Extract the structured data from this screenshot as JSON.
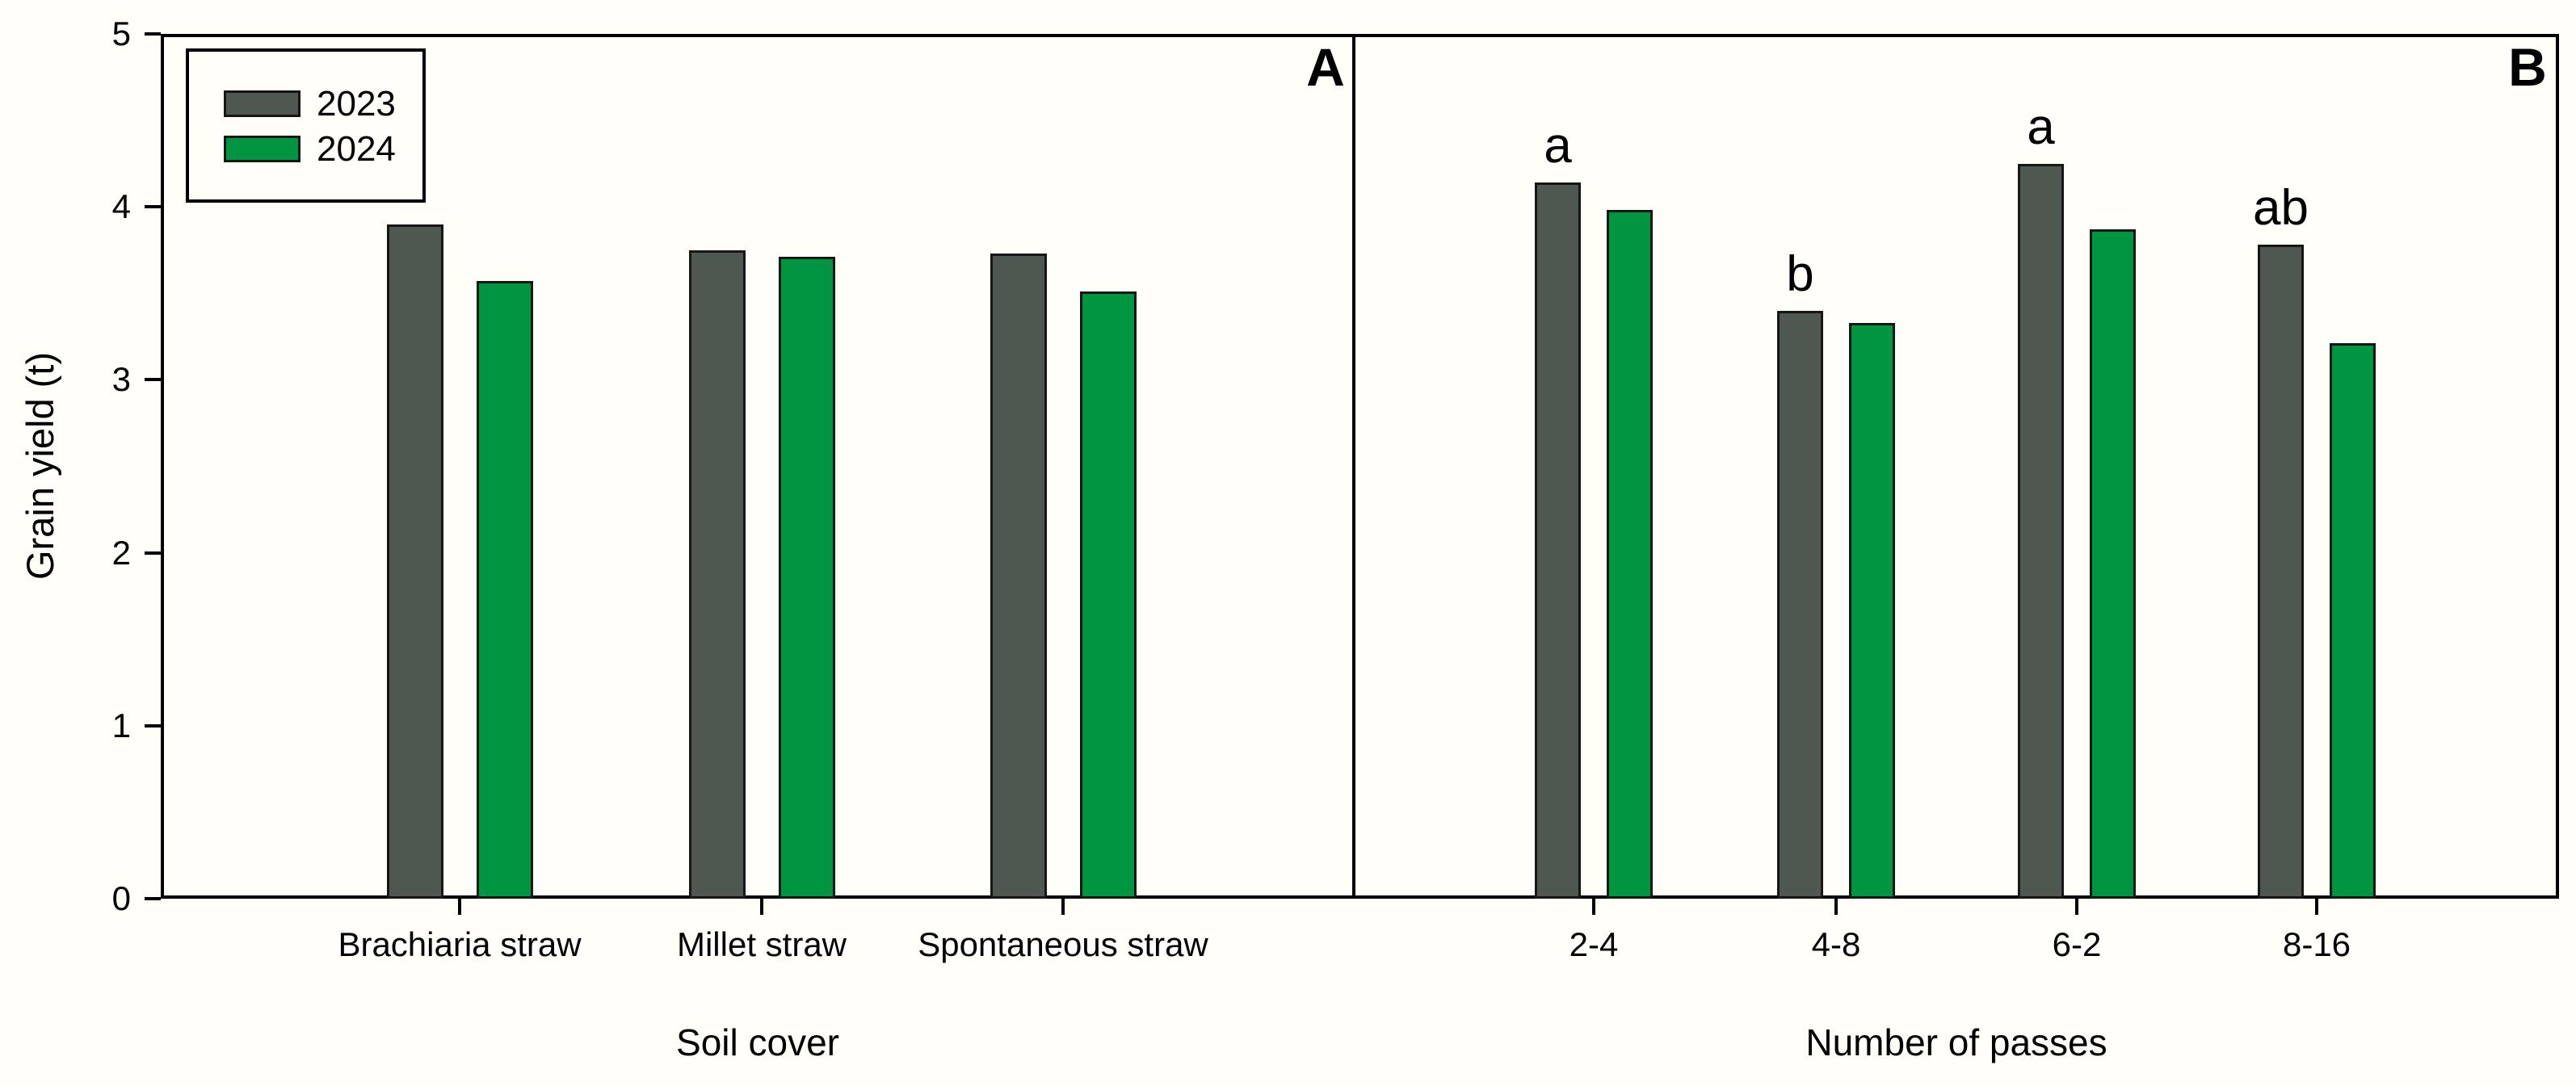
{
  "figure": {
    "background": "#fffef8",
    "ylabel": "Grain yield (t)",
    "ylim": [
      0,
      5
    ],
    "ytick_labels": [
      "0",
      "1",
      "2",
      "3",
      "4",
      "5"
    ],
    "axis_color": "#000000",
    "bar_border_color": "#161616"
  },
  "legend": {
    "position": "top-left",
    "items": [
      {
        "label": "2023",
        "color": "#4f5850"
      },
      {
        "label": "2024",
        "color": "#009540"
      }
    ]
  },
  "chart_data": [
    {
      "type": "bar",
      "panel_label": "A",
      "xlabel": "Soil cover",
      "ylabel": "Grain yield (t)",
      "ylim": [
        0,
        5
      ],
      "grid": false,
      "legend_position": "top-left",
      "categories": [
        "Brachiaria straw",
        "Millet straw",
        "Spontaneous straw"
      ],
      "series": [
        {
          "name": "2023",
          "color": "#4f5850",
          "values": [
            3.9,
            3.75,
            3.73
          ]
        },
        {
          "name": "2024",
          "color": "#009540",
          "values": [
            3.57,
            3.71,
            3.51
          ]
        }
      ]
    },
    {
      "type": "bar",
      "panel_label": "B",
      "xlabel": "Number of passes",
      "ylabel": "Grain yield (t)",
      "ylim": [
        0,
        5
      ],
      "grid": false,
      "categories": [
        "2-4",
        "4-8",
        "6-2",
        "8-16"
      ],
      "series": [
        {
          "name": "2023",
          "color": "#4f5850",
          "values": [
            4.14,
            3.4,
            4.25,
            3.78
          ]
        },
        {
          "name": "2024",
          "color": "#009540",
          "values": [
            3.98,
            3.33,
            3.87,
            3.21
          ]
        }
      ],
      "sig_letters": [
        "a",
        "b",
        "a",
        "ab"
      ]
    }
  ]
}
